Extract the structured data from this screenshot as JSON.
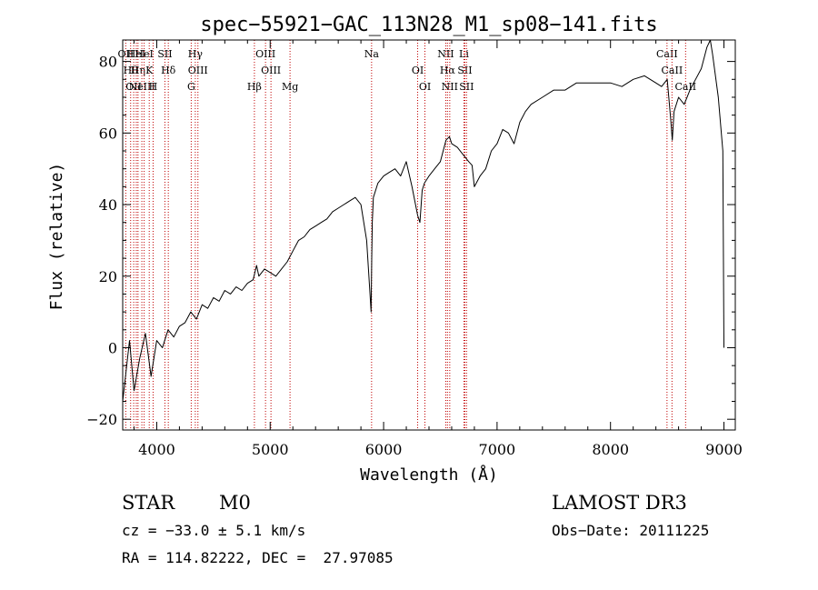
{
  "chart_data": {
    "type": "line",
    "title": "spec−55921−GAC_113N28_M1_sp08−141.fits",
    "xlabel": "Wavelength (Å)",
    "ylabel": "Flux (relative)",
    "xlim": [
      3700,
      9100
    ],
    "ylim": [
      -23,
      86
    ],
    "xticks": [
      4000,
      5000,
      6000,
      7000,
      8000,
      9000
    ],
    "yticks": [
      -20,
      0,
      20,
      40,
      60,
      80
    ],
    "grid": false,
    "series": [
      {
        "name": "spectrum",
        "x": [
          3700,
          3760,
          3800,
          3850,
          3900,
          3950,
          4000,
          4050,
          4100,
          4150,
          4200,
          4250,
          4300,
          4350,
          4400,
          4450,
          4500,
          4550,
          4600,
          4650,
          4700,
          4750,
          4800,
          4850,
          4880,
          4900,
          4950,
          5000,
          5050,
          5100,
          5150,
          5200,
          5250,
          5300,
          5350,
          5400,
          5450,
          5500,
          5550,
          5600,
          5650,
          5700,
          5750,
          5800,
          5850,
          5880,
          5890,
          5895,
          5900,
          5910,
          5950,
          6000,
          6050,
          6100,
          6150,
          6200,
          6250,
          6300,
          6320,
          6340,
          6360,
          6400,
          6450,
          6500,
          6550,
          6580,
          6600,
          6650,
          6700,
          6750,
          6780,
          6800,
          6850,
          6900,
          6950,
          7000,
          7050,
          7100,
          7150,
          7200,
          7250,
          7300,
          7400,
          7500,
          7600,
          7700,
          7800,
          7900,
          8000,
          8100,
          8200,
          8300,
          8400,
          8450,
          8500,
          8530,
          8545,
          8560,
          8600,
          8650,
          8700,
          8750,
          8800,
          8850,
          8880,
          8900,
          8950,
          8990,
          9000
        ],
        "y": [
          -15,
          2,
          -12,
          -3,
          4,
          -8,
          2,
          0,
          5,
          3,
          6,
          7,
          10,
          8,
          12,
          11,
          14,
          13,
          16,
          15,
          17,
          16,
          18,
          19,
          23,
          20,
          22,
          21,
          20,
          22,
          24,
          27,
          30,
          31,
          33,
          34,
          35,
          36,
          38,
          39,
          40,
          41,
          42,
          40,
          30,
          15,
          10,
          25,
          35,
          42,
          46,
          48,
          49,
          50,
          48,
          52,
          45,
          37,
          35,
          44,
          46,
          48,
          50,
          52,
          58,
          59,
          57,
          56,
          54,
          52,
          51,
          45,
          48,
          50,
          55,
          57,
          61,
          60,
          57,
          63,
          66,
          68,
          70,
          72,
          72,
          74,
          74,
          74,
          74,
          73,
          75,
          76,
          74,
          73,
          75,
          64,
          58,
          66,
          70,
          68,
          72,
          75,
          78,
          84,
          86,
          82,
          70,
          55,
          0
        ]
      }
    ],
    "line_annotations": [
      {
        "x": 3727,
        "label": "OII"
      },
      {
        "x": 3770,
        "label": "Hθ"
      },
      {
        "x": 3797,
        "label": "OII"
      },
      {
        "x": 3820,
        "label": "HeI"
      },
      {
        "x": 3835,
        "label": "Hη"
      },
      {
        "x": 3869,
        "label": "NeIII"
      },
      {
        "x": 3889,
        "label": "HeI"
      },
      {
        "x": 3934,
        "label": "K"
      },
      {
        "x": 3968,
        "label": "H"
      },
      {
        "x": 4072,
        "label": "SII"
      },
      {
        "x": 4102,
        "label": "Hδ"
      },
      {
        "x": 4304,
        "label": "G"
      },
      {
        "x": 4340,
        "label": "Hγ"
      },
      {
        "x": 4363,
        "label": "OIII"
      },
      {
        "x": 4861,
        "label": "Hβ"
      },
      {
        "x": 4959,
        "label": "OIII"
      },
      {
        "x": 5007,
        "label": "OIII"
      },
      {
        "x": 5175,
        "label": "Mg"
      },
      {
        "x": 5894,
        "label": "Na"
      },
      {
        "x": 6300,
        "label": "OI"
      },
      {
        "x": 6364,
        "label": "OI"
      },
      {
        "x": 6548,
        "label": "NII"
      },
      {
        "x": 6563,
        "label": "Hα"
      },
      {
        "x": 6583,
        "label": "NII"
      },
      {
        "x": 6708,
        "label": "Li"
      },
      {
        "x": 6716,
        "label": "SII"
      },
      {
        "x": 6731,
        "label": "SII"
      },
      {
        "x": 8498,
        "label": "CaII"
      },
      {
        "x": 8542,
        "label": "CaII"
      },
      {
        "x": 8662,
        "label": "CaII"
      }
    ]
  },
  "info": {
    "object_type": "STAR",
    "subclass": "M0",
    "survey": "LAMOST DR3",
    "cz": "cz = −33.0 ± 5.1 km/s",
    "obs_date": "Obs−Date: 20111225",
    "coords": "RA = 114.82222, DEC =  27.97085"
  }
}
